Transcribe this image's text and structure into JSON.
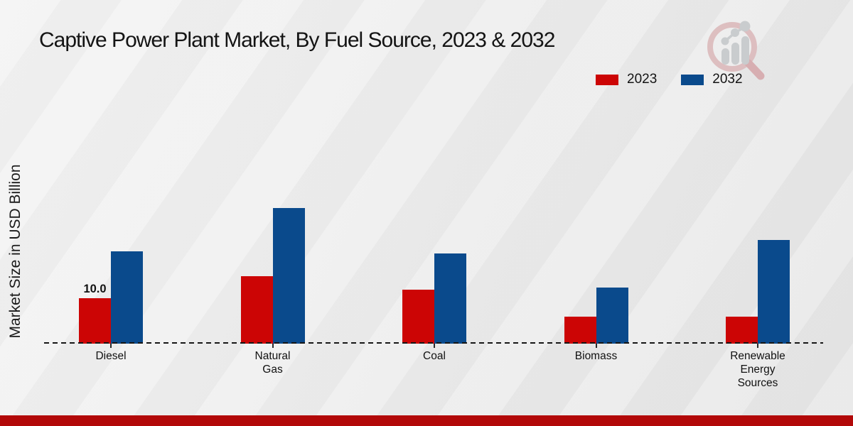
{
  "title": "Captive Power Plant Market, By Fuel Source, 2023 & 2032",
  "y_axis_label": "Market Size in USD Billion",
  "legend": [
    {
      "label": "2023",
      "color": "#cc0505"
    },
    {
      "label": "2032",
      "color": "#0a4a8c"
    }
  ],
  "chart_data": {
    "type": "bar",
    "title": "Captive Power Plant Market, By Fuel Source, 2023 & 2032",
    "xlabel": "",
    "ylabel": "Market Size in USD Billion",
    "categories": [
      "Diesel",
      "Natural\nGas",
      "Coal",
      "Biomass",
      "Renewable\nEnergy\nSources"
    ],
    "series": [
      {
        "name": "2023",
        "color": "#cc0505",
        "values": [
          10.0,
          15.0,
          12.0,
          6.0,
          6.0
        ]
      },
      {
        "name": "2032",
        "color": "#0a4a8c",
        "values": [
          20.5,
          30.0,
          20.0,
          12.5,
          23.0
        ]
      }
    ],
    "data_labels": [
      {
        "series_index": 0,
        "category_index": 0,
        "text": "10.0"
      }
    ],
    "ylim": [
      0,
      32
    ],
    "grid": false,
    "axis_line_style": "dashed",
    "legend_position": "top-right"
  },
  "colors": {
    "bar_2023": "#cc0505",
    "bar_2032": "#0a4a8c",
    "footer_strip": "#b20808",
    "baseline": "#161616",
    "background": "#ededed"
  },
  "footer": {
    "strip": ""
  },
  "logo": {
    "name": "market-research-magnifier-logo"
  }
}
